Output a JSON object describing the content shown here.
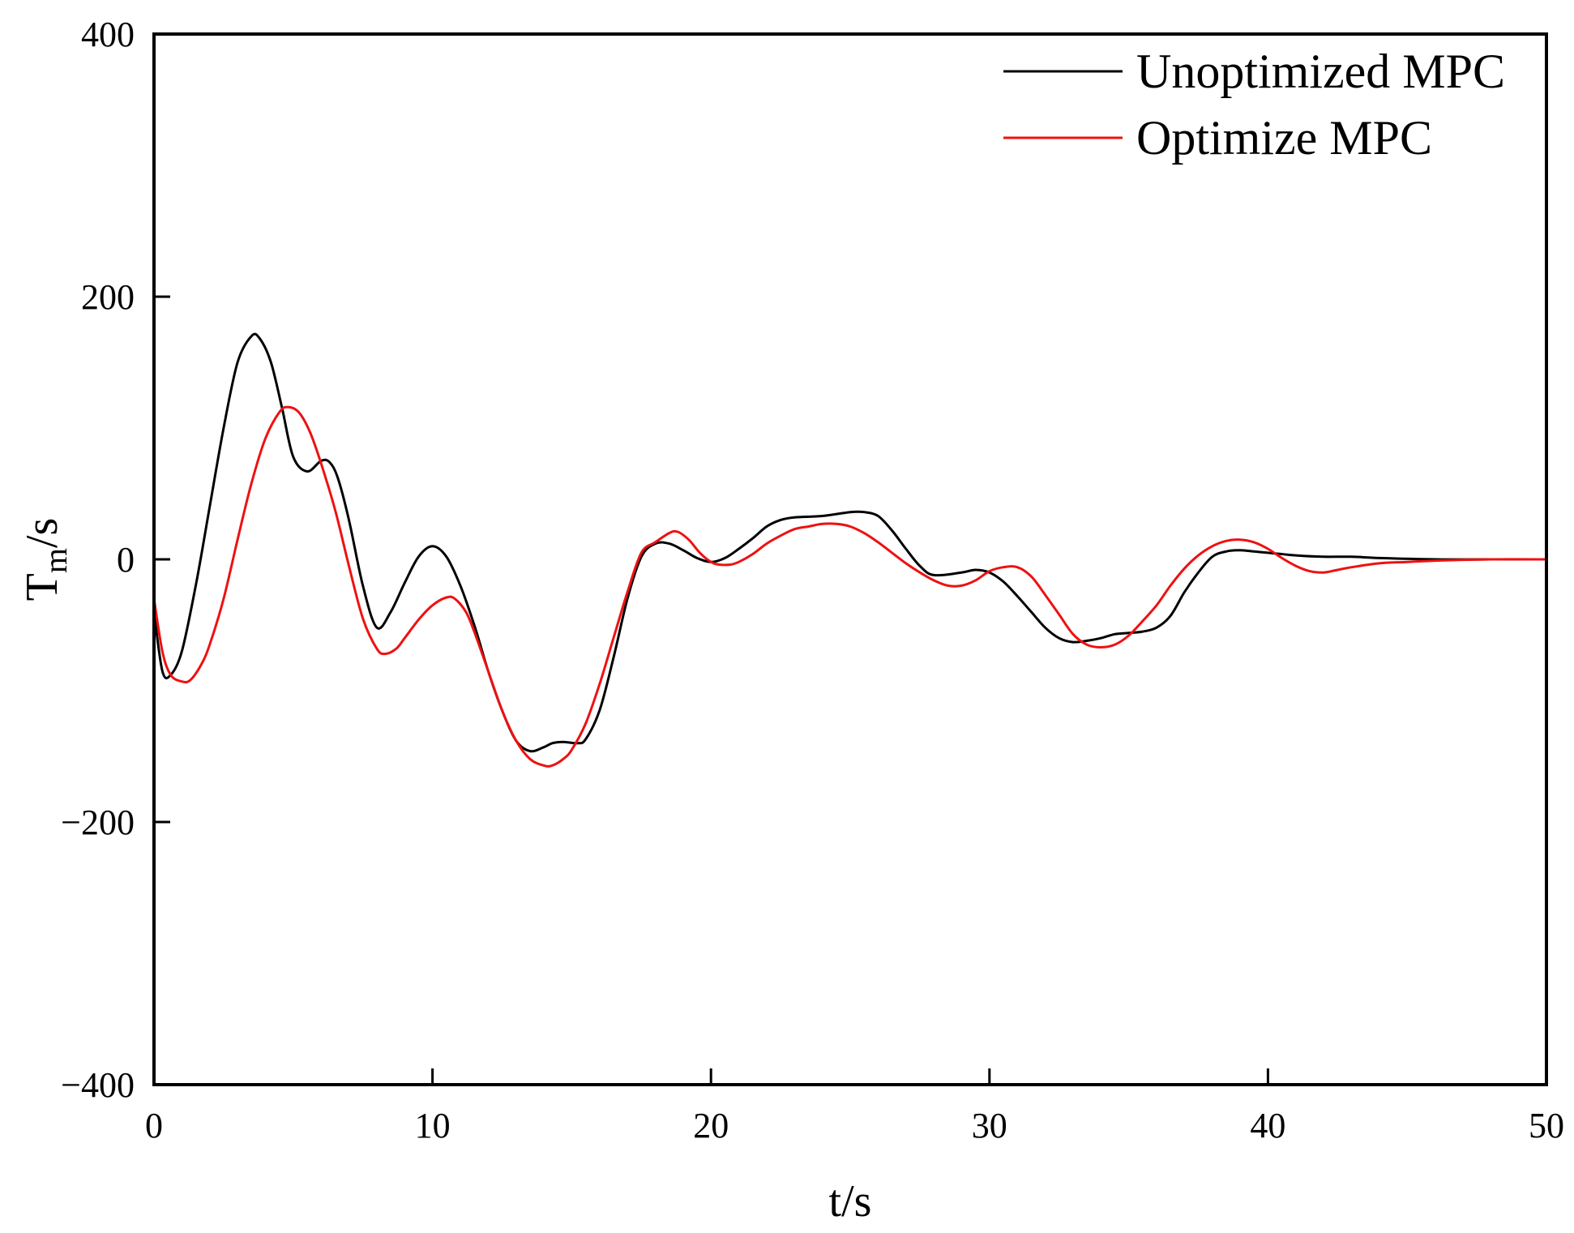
{
  "chart_data": {
    "type": "line",
    "title": "",
    "xlabel": "t/s",
    "ylabel_main": "T",
    "ylabel_sub": "m",
    "ylabel_suffix": "/s",
    "xlim": [
      0,
      50
    ],
    "ylim": [
      -400,
      400
    ],
    "xticks": [
      0,
      10,
      20,
      30,
      40,
      50
    ],
    "yticks": [
      -400,
      -200,
      0,
      200,
      400
    ],
    "ytick_labels": [
      "−400",
      "−200",
      "0",
      "200",
      "400"
    ],
    "grid": false,
    "legend_position": "top-right",
    "series": [
      {
        "name": "Unoptimized MPC",
        "color": "#000000",
        "x": [
          0,
          0.3,
          0.6,
          1.0,
          1.5,
          2.0,
          2.5,
          3.0,
          3.5,
          3.8,
          4.2,
          4.6,
          5.0,
          5.5,
          6.0,
          6.3,
          6.6,
          7.0,
          7.5,
          8.0,
          8.5,
          9.0,
          9.5,
          10.0,
          10.5,
          11.0,
          11.5,
          12.0,
          12.5,
          13.0,
          13.5,
          14.0,
          14.3,
          14.7,
          15.2,
          15.5,
          16.0,
          16.5,
          17.0,
          17.5,
          18.0,
          18.5,
          19.0,
          19.5,
          20.0,
          20.5,
          21.0,
          21.5,
          22.0,
          22.5,
          23.0,
          24.0,
          25.0,
          25.5,
          26.0,
          26.5,
          27.0,
          27.5,
          28.0,
          29.0,
          29.5,
          30.0,
          30.5,
          31.0,
          31.5,
          32.0,
          32.5,
          33.0,
          33.5,
          34.0,
          34.5,
          35.0,
          35.5,
          36.0,
          36.5,
          37.0,
          37.5,
          38.0,
          38.5,
          39.0,
          39.5,
          40.0,
          40.5,
          41.0,
          42.0,
          43.0,
          44.0,
          46.0,
          48.0,
          50.0
        ],
        "y": [
          -40,
          -85,
          -88,
          -70,
          -20,
          40,
          100,
          150,
          170,
          168,
          150,
          115,
          78,
          67,
          75,
          74,
          62,
          30,
          -20,
          -52,
          -40,
          -18,
          2,
          10,
          2,
          -20,
          -50,
          -85,
          -115,
          -138,
          -146,
          -143,
          -140,
          -139,
          -140,
          -137,
          -115,
          -75,
          -30,
          2,
          12,
          12,
          7,
          1,
          -2,
          1,
          8,
          16,
          25,
          30,
          32,
          33,
          36,
          36,
          33,
          22,
          8,
          -5,
          -12,
          -10,
          -8,
          -10,
          -17,
          -28,
          -40,
          -52,
          -60,
          -63,
          -62,
          -60,
          -57,
          -56,
          -55,
          -52,
          -43,
          -25,
          -10,
          2,
          6,
          7,
          6,
          5,
          4,
          3,
          2,
          2,
          1,
          0,
          0,
          0
        ]
      },
      {
        "name": "Optimize MPC",
        "color": "#ee1111",
        "x": [
          0,
          0.3,
          0.6,
          1.0,
          1.3,
          1.7,
          2.0,
          2.5,
          3.0,
          3.5,
          4.0,
          4.5,
          4.8,
          5.2,
          5.6,
          6.0,
          6.5,
          7.0,
          7.5,
          8.0,
          8.3,
          8.7,
          9.0,
          9.5,
          10.0,
          10.5,
          10.8,
          11.2,
          11.5,
          12.0,
          12.5,
          13.0,
          13.5,
          14.0,
          14.3,
          14.7,
          15.0,
          15.5,
          16.0,
          16.5,
          17.0,
          17.5,
          18.0,
          18.5,
          18.8,
          19.2,
          19.6,
          20.0,
          20.3,
          20.7,
          21.0,
          21.5,
          22.0,
          22.5,
          23.0,
          23.5,
          24.0,
          24.5,
          25.0,
          25.5,
          26.0,
          26.5,
          27.0,
          27.5,
          28.0,
          28.5,
          29.0,
          29.5,
          30.0,
          30.5,
          31.0,
          31.5,
          32.0,
          32.5,
          33.0,
          33.5,
          34.0,
          34.5,
          35.0,
          35.5,
          36.0,
          36.5,
          37.0,
          37.5,
          38.0,
          38.5,
          39.0,
          39.5,
          40.0,
          40.5,
          41.0,
          41.5,
          42.0,
          42.5,
          43.0,
          44.0,
          45.0,
          46.0,
          48.0,
          50.0
        ],
        "y": [
          -30,
          -70,
          -88,
          -93,
          -92,
          -80,
          -65,
          -30,
          15,
          58,
          92,
          112,
          116,
          112,
          97,
          73,
          38,
          -5,
          -45,
          -68,
          -72,
          -68,
          -60,
          -46,
          -35,
          -29,
          -30,
          -40,
          -55,
          -85,
          -115,
          -138,
          -152,
          -157,
          -157,
          -152,
          -145,
          -125,
          -95,
          -60,
          -25,
          5,
          13,
          20,
          21,
          15,
          5,
          -2,
          -4,
          -4,
          -2,
          4,
          12,
          18,
          23,
          25,
          27,
          27,
          25,
          20,
          13,
          5,
          -3,
          -10,
          -16,
          -20,
          -20,
          -16,
          -9,
          -6,
          -6,
          -13,
          -27,
          -42,
          -57,
          -65,
          -67,
          -65,
          -58,
          -47,
          -35,
          -20,
          -7,
          3,
          10,
          14,
          15,
          13,
          8,
          1,
          -5,
          -9,
          -10,
          -8,
          -6,
          -3,
          -2,
          -1,
          0,
          0
        ]
      }
    ]
  }
}
